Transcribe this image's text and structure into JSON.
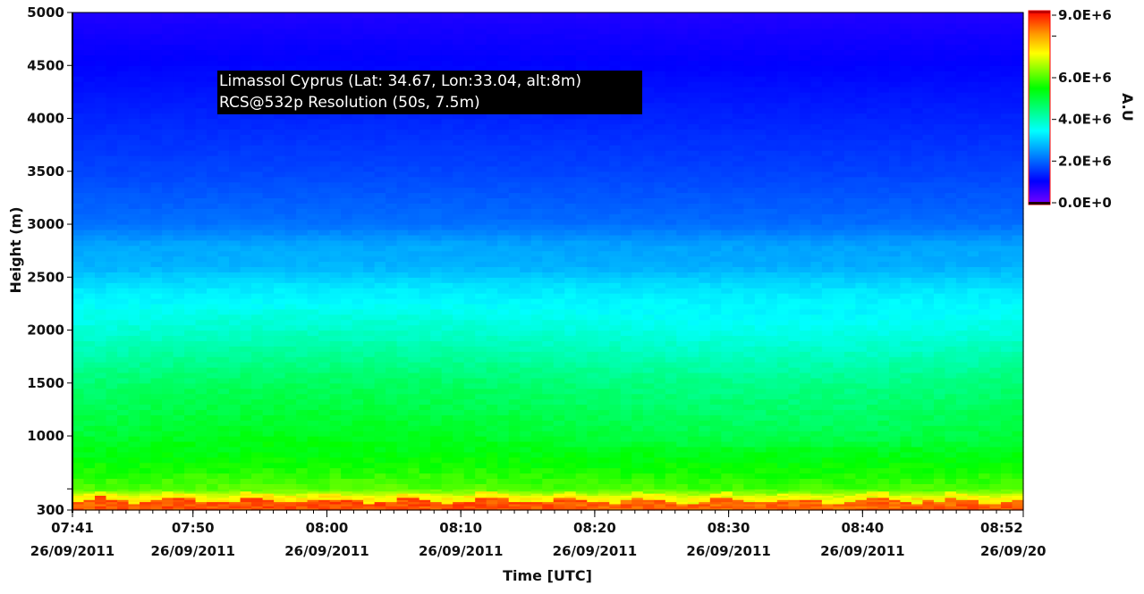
{
  "chart_data": {
    "type": "heatmap",
    "title_lines": [
      "Limassol Cyprus (Lat: 34.67, Lon:33.04, alt:8m)",
      "RCS@532p Resolution (50s, 7.5m)"
    ],
    "xlabel": "Time [UTC]",
    "ylabel": "Height (m)",
    "colorbar_label": "A.U",
    "xlim_minutes": [
      0,
      71
    ],
    "x_start": "07:41",
    "x_ticks": [
      {
        "minute": 0,
        "time": "07:41",
        "date": "26/09/2011"
      },
      {
        "minute": 9,
        "time": "07:50",
        "date": "26/09/2011"
      },
      {
        "minute": 19,
        "time": "08:00",
        "date": "26/09/2011"
      },
      {
        "minute": 29,
        "time": "08:10",
        "date": "26/09/2011"
      },
      {
        "minute": 39,
        "time": "08:20",
        "date": "26/09/2011"
      },
      {
        "minute": 49,
        "time": "08:30",
        "date": "26/09/2011"
      },
      {
        "minute": 59,
        "time": "08:40",
        "date": "26/09/2011"
      },
      {
        "minute": 71,
        "time": "08:52",
        "date": "26/09/20"
      }
    ],
    "ylim": [
      300,
      5000
    ],
    "y_ticks": [
      "300",
      "1000",
      "1500",
      "2000",
      "2500",
      "3000",
      "3500",
      "4000",
      "4500",
      "5000"
    ],
    "colorbar": {
      "range": [
        0,
        9000000
      ],
      "ticks": [
        "0.0E+0",
        "2.0E+6",
        "4.0E+6",
        "6.0E+6",
        "9.0E+6"
      ],
      "tick_values": [
        0,
        2000000,
        4000000,
        6000000,
        9000000
      ]
    },
    "mean_profile": {
      "height_m": [
        300,
        380,
        430,
        500,
        700,
        1000,
        1500,
        2000,
        2400,
        2600,
        2800,
        3000,
        3500,
        4000,
        4500,
        5000
      ],
      "value": [
        8600000,
        8000000,
        6800000,
        5900000,
        5500000,
        5000000,
        4500000,
        3700000,
        3200000,
        2700000,
        2600000,
        2100000,
        1700000,
        1400000,
        1100000,
        800000
      ]
    }
  }
}
